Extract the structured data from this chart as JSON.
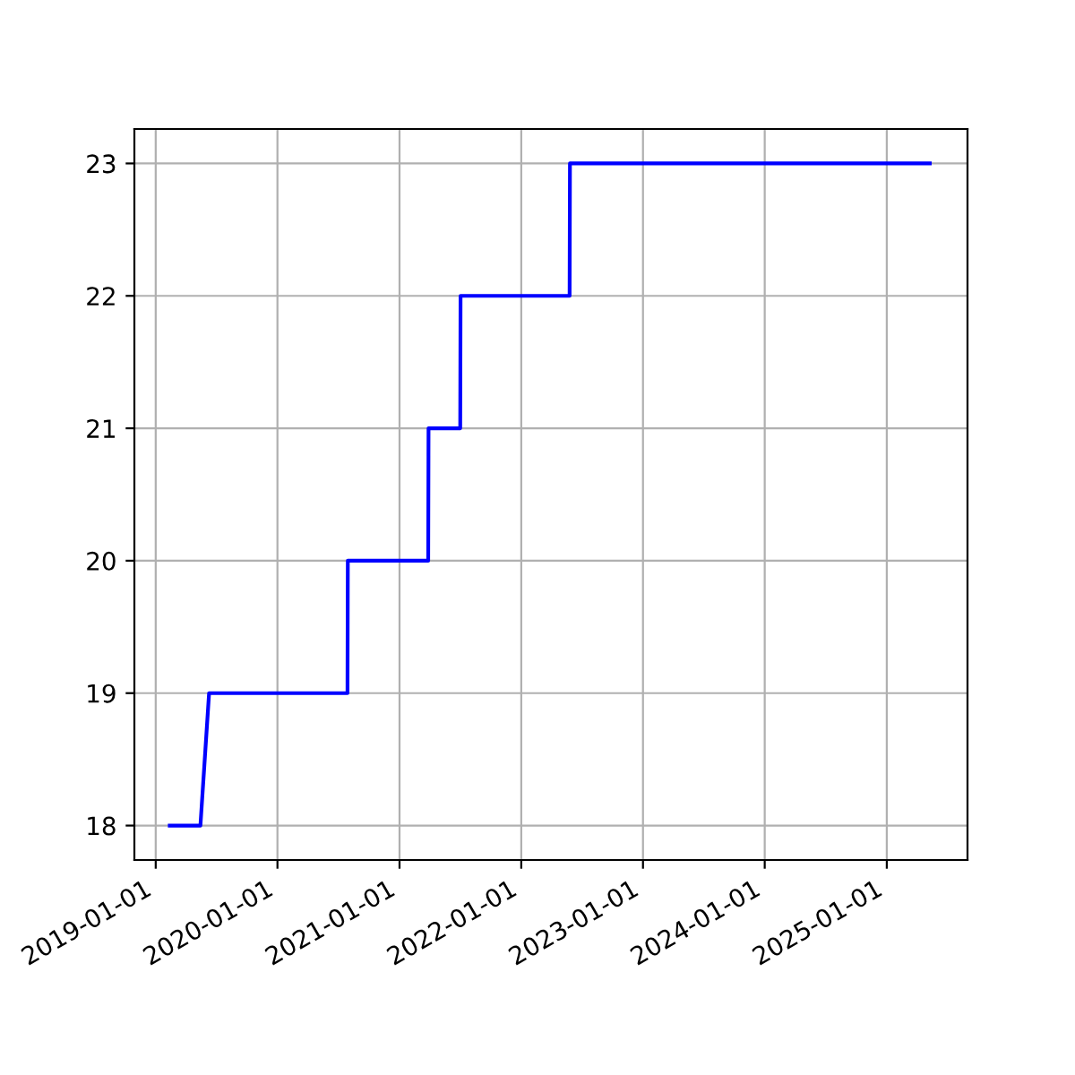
{
  "chart_data": {
    "type": "line",
    "x": [
      "2019-02-12",
      "2019-05-15",
      "2019-06-10",
      "2020-07-29",
      "2020-07-30",
      "2021-03-28",
      "2021-03-29",
      "2021-07-02",
      "2021-07-03",
      "2022-05-26",
      "2022-05-27",
      "2025-05-10"
    ],
    "series": [
      {
        "color": "#0000ff",
        "values": [
          18,
          18,
          19,
          19,
          20,
          20,
          21,
          21,
          22,
          22,
          23,
          23
        ]
      }
    ],
    "xlim": [
      "2018-10-29",
      "2025-08-31"
    ],
    "xticks": [
      "2019-01-01",
      "2020-01-01",
      "2021-01-01",
      "2022-01-01",
      "2023-01-01",
      "2024-01-01",
      "2025-01-01"
    ],
    "ylim": [
      17.74,
      23.26
    ],
    "yticks": [
      18,
      19,
      20,
      21,
      22,
      23
    ],
    "grid": true,
    "marker": "none",
    "line_style": "solid"
  }
}
